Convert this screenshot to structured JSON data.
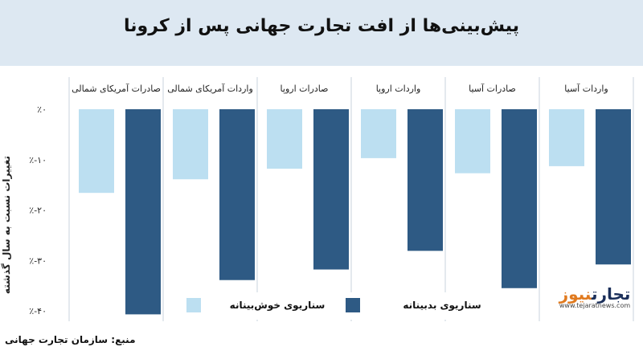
{
  "title": "پیش‌بینی‌ها از افت تجارت جهانی پس از کرونا",
  "source": "منبع: سازمان تجارت جهانی",
  "logo": {
    "name_dark": "تجارت",
    "name_accent": "نیوز",
    "url": "www.tejaratnews.com"
  },
  "colors": {
    "optimistic": "#bcdff1",
    "pessimistic": "#2e5a84",
    "header_bg": "#dde8f2",
    "divider": "#c9d3dd"
  },
  "chart_data": {
    "type": "bar",
    "title": "پیش‌بینی‌ها از افت تجارت جهانی پس از کرونا",
    "ylabel": "تغییرات نسبت به سال گذشته",
    "ylim": [
      -40,
      0
    ],
    "yticks": [
      0,
      -10,
      -20,
      -30,
      -40
    ],
    "ytick_labels": [
      "٪۰",
      "٪-۱۰",
      "٪-۲۰",
      "٪-۳۰",
      "٪-۴۰"
    ],
    "categories": [
      "واردات آسیا",
      "صادرات آسیا",
      "واردات اروپا",
      "صادرات اروپا",
      "واردات آمریکای شمالی",
      "صادرات آمریکای شمالی"
    ],
    "series": [
      {
        "name": "سناریوی خوش‌بینانه",
        "color": "#bcdff1",
        "values": [
          -11.3,
          -12.7,
          -9.7,
          -11.8,
          -13.9,
          -16.6
        ]
      },
      {
        "name": "سناریوی بدبینانه",
        "color": "#2e5a84",
        "values": [
          -30.8,
          -35.5,
          -28.1,
          -31.8,
          -33.9,
          -40.7
        ]
      }
    ],
    "legend_position": "bottom"
  }
}
